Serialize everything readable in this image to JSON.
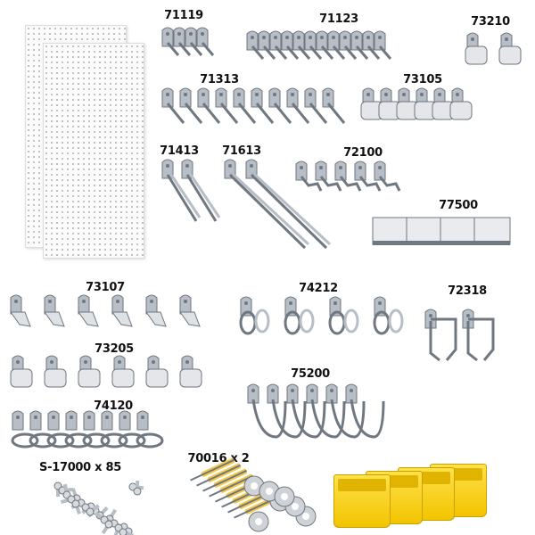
{
  "product_labels": {
    "l71119": "71119",
    "l71123": "71123",
    "l73210": "73210",
    "l71313": "71313",
    "l73105": "73105",
    "l71413": "71413",
    "l71613": "71613",
    "l72100": "72100",
    "l77500": "77500",
    "l73107": "73107",
    "l74212": "74212",
    "l72318": "72318",
    "l73205": "73205",
    "l75200": "75200",
    "l74120": "74120",
    "screws": "S-17000 x 85",
    "anchors": "70016 x 2"
  },
  "colors": {
    "metal": "#b8bec6",
    "metal_dark": "#6f7780",
    "bin_yellow": "#f5cc12",
    "pegboard": "#fbfbfb",
    "anchor_yellow": "#f3c84a"
  }
}
